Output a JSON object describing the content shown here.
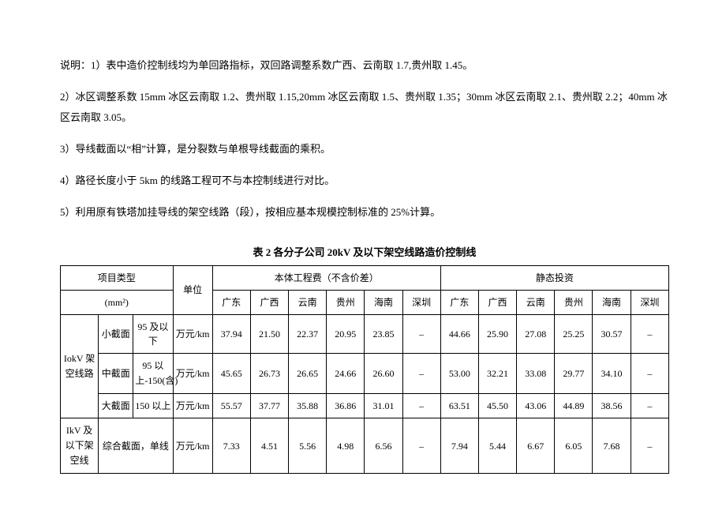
{
  "notes": {
    "p1": "说明：1）表中造价控制线均为单回路指标，双回路调整系数广西、云南取 1.7,贵州取 1.45。",
    "p2": "2）冰区调整系数 15mm 冰区云南取 1.2、贵州取 1.15,20mm 冰区云南取 1.5、贵州取 1.35；30mm 冰区云南取 2.1、贵州取 2.2；40mm 冰区云南取 3.05。",
    "p3": "3）导线截面以“相”计算，是分裂数与单根导线截面的乘积。",
    "p4": "4）路径长度小于 5km 的线路工程可不与本控制线进行对比。",
    "p5": "5）利用原有铁塔加挂导线的架空线路（段），按相应基本规模控制标准的 25%计算。"
  },
  "table": {
    "title": "表 2 各分子公司 20kV 及以下架空线路造价控制线",
    "header": {
      "projectType": "项目类型",
      "projectUnit": "(mm²)",
      "unit": "单位",
      "group1": "本体工程费（不含价差）",
      "group2": "静态投资",
      "cols": [
        "广东",
        "广西",
        "云南",
        "贵州",
        "海南",
        "深圳",
        "广东",
        "广西",
        "云南",
        "贵州",
        "海南",
        "深圳"
      ]
    },
    "rows": [
      {
        "cat": "IokV 架空线路",
        "sub": "小截面",
        "range": "95 及以下",
        "unit": "万元/km",
        "vals": [
          "37.94",
          "21.50",
          "22.37",
          "20.95",
          "23.85",
          "–",
          "44.66",
          "25.90",
          "27.08",
          "25.25",
          "30.57",
          "–"
        ]
      },
      {
        "sub": "中截面",
        "range": "95 以上-150(含)",
        "unit": "万元/km",
        "vals": [
          "45.65",
          "26.73",
          "26.65",
          "24.66",
          "26.60",
          "–",
          "53.00",
          "32.21",
          "33.08",
          "29.77",
          "34.10",
          "–"
        ]
      },
      {
        "sub": "大截面",
        "range": "150 以上",
        "unit": "万元/km",
        "vals": [
          "55.57",
          "37.77",
          "35.88",
          "36.86",
          "31.01",
          "–",
          "63.51",
          "45.50",
          "43.06",
          "44.89",
          "38.56",
          "–"
        ]
      },
      {
        "cat": "IkV 及以下架空线",
        "merged": "综合截面，单线",
        "unit": "万元/km",
        "vals": [
          "7.33",
          "4.51",
          "5.56",
          "4.98",
          "6.56",
          "–",
          "7.94",
          "5.44",
          "6.67",
          "6.05",
          "7.68",
          "–"
        ]
      }
    ]
  }
}
